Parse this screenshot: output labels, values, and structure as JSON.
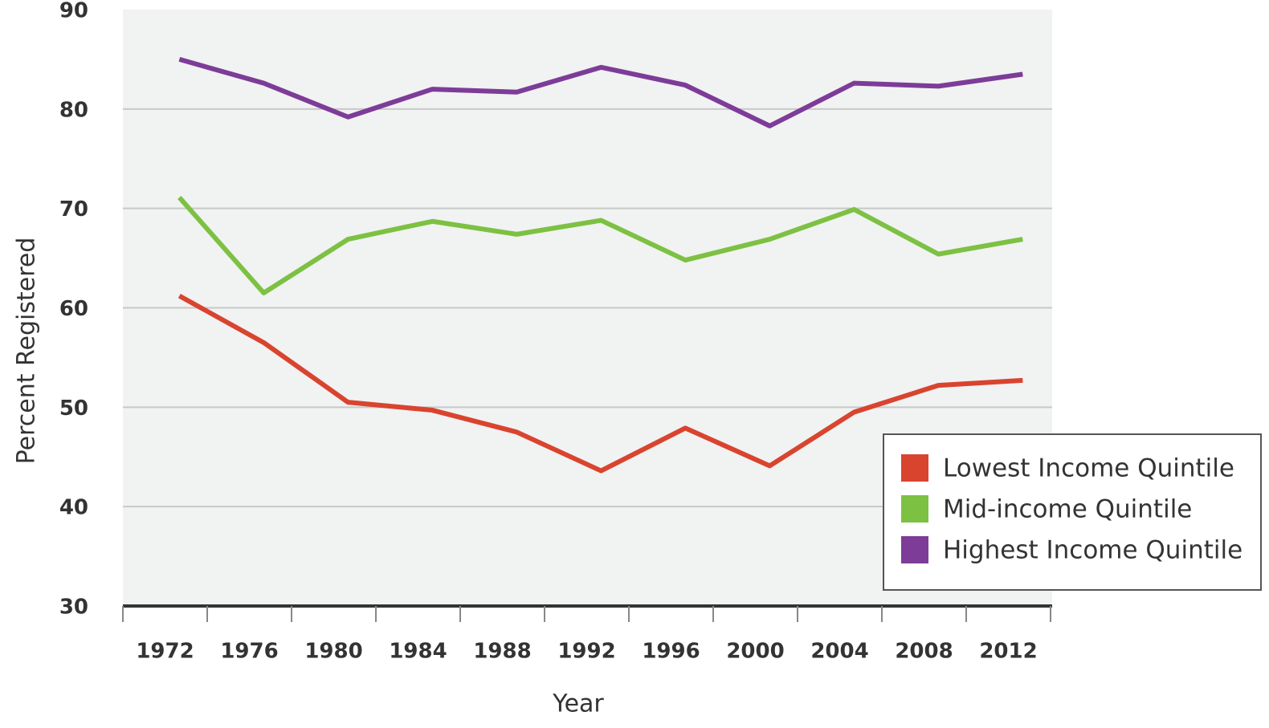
{
  "chart_data": {
    "type": "line",
    "x_label": "Year",
    "y_label": "Percent Registered",
    "categories": [
      "1972",
      "1976",
      "1980",
      "1984",
      "1988",
      "1992",
      "1996",
      "2000",
      "2004",
      "2008",
      "2012"
    ],
    "series": [
      {
        "name": "Lowest Income Quintile",
        "color": "#d9442f",
        "values": [
          61.2,
          56.5,
          50.5,
          49.7,
          47.5,
          43.6,
          47.9,
          44.1,
          49.5,
          52.2,
          52.7
        ]
      },
      {
        "name": "Mid-income Quintile",
        "color": "#7dc143",
        "values": [
          71.1,
          61.5,
          66.9,
          68.7,
          67.4,
          68.8,
          64.8,
          66.9,
          69.9,
          65.4,
          66.9
        ]
      },
      {
        "name": "Highest Income Quintile",
        "color": "#7d3c98",
        "values": [
          85.0,
          82.6,
          79.2,
          82.0,
          81.7,
          84.2,
          82.4,
          78.3,
          82.6,
          82.3,
          83.5
        ]
      }
    ],
    "ylim": [
      30,
      90
    ],
    "yticks": [
      30,
      40,
      50,
      60,
      70,
      80,
      90
    ],
    "grid": true,
    "legend": "lower right"
  }
}
